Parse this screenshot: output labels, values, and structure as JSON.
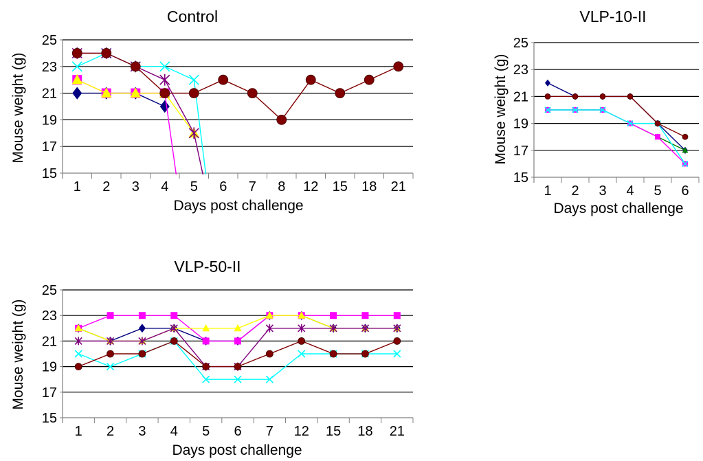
{
  "chart_data": [
    {
      "type": "line",
      "title": "Control",
      "xlabel": "Days post challenge",
      "ylabel": "Mouse weight (g)",
      "categories": [
        "1",
        "2",
        "3",
        "4",
        "5",
        "6",
        "7",
        "8",
        "12",
        "15",
        "18",
        "21"
      ],
      "ylim": [
        15,
        25
      ],
      "yticks": [
        15,
        17,
        19,
        21,
        23,
        25
      ],
      "grid": true,
      "series": [
        {
          "color": "#000080",
          "marker": "diamond",
          "values": [
            21,
            21,
            21,
            20,
            null,
            null,
            null,
            null,
            null,
            null,
            null,
            null
          ],
          "drop_after_index": null
        },
        {
          "color": "#ff00ff",
          "marker": "square",
          "values": [
            22,
            21,
            21,
            21,
            null,
            null,
            null,
            null,
            null,
            null,
            null,
            null
          ],
          "drop_after_index": 3
        },
        {
          "color": "#ffff00",
          "marker": "triangle",
          "values": [
            22,
            21,
            21,
            21,
            18,
            null,
            null,
            null,
            null,
            null,
            null,
            null
          ],
          "drop_after_index": null
        },
        {
          "color": "#00ffff",
          "marker": "x",
          "values": [
            23,
            24,
            23,
            23,
            22,
            null,
            null,
            null,
            null,
            null,
            null,
            null
          ],
          "drop_after_index": 4
        },
        {
          "color": "#800080",
          "marker": "star",
          "values": [
            24,
            24,
            23,
            22,
            18,
            null,
            null,
            null,
            null,
            null,
            null,
            null
          ],
          "drop_after_index": 4
        },
        {
          "color": "#800000",
          "marker": "circle",
          "values": [
            24,
            24,
            23,
            21,
            21,
            22,
            21,
            19,
            22,
            21,
            22,
            23
          ],
          "drop_after_index": null
        }
      ]
    },
    {
      "type": "line",
      "title": "VLP-10-II",
      "xlabel": "Days post challenge",
      "ylabel": "Mouse weight (g)",
      "categories": [
        "1",
        "2",
        "3",
        "4",
        "5",
        "6"
      ],
      "ylim": [
        15,
        25
      ],
      "yticks": [
        15,
        17,
        19,
        21,
        23,
        25
      ],
      "grid": true,
      "series": [
        {
          "color": "#000080",
          "marker": "diamond",
          "values": [
            22,
            21,
            21,
            21,
            19,
            17
          ]
        },
        {
          "color": "#008000",
          "marker": "triangle",
          "values": [
            20,
            20,
            20,
            19,
            18,
            17
          ]
        },
        {
          "color": "#ff00ff",
          "marker": "square",
          "values": [
            20,
            20,
            20,
            19,
            18,
            16
          ]
        },
        {
          "color": "#00ffff",
          "marker": "x",
          "values": [
            20,
            20,
            20,
            19,
            19,
            16
          ]
        },
        {
          "color": "#800000",
          "marker": "circle",
          "values": [
            21,
            21,
            21,
            21,
            19,
            18
          ]
        }
      ]
    },
    {
      "type": "line",
      "title": "VLP-50-II",
      "xlabel": "Days post challenge",
      "ylabel": "Mouse weight (g)",
      "categories": [
        "1",
        "2",
        "3",
        "4",
        "5",
        "6",
        "7",
        "12",
        "15",
        "18",
        "21"
      ],
      "ylim": [
        15,
        25
      ],
      "yticks": [
        15,
        17,
        19,
        21,
        23,
        25
      ],
      "grid": true,
      "series": [
        {
          "color": "#000080",
          "marker": "diamond",
          "values": [
            22,
            21,
            22,
            22,
            21,
            21,
            23,
            23,
            22,
            22,
            22
          ]
        },
        {
          "color": "#ff00ff",
          "marker": "square",
          "values": [
            22,
            23,
            23,
            23,
            21,
            21,
            23,
            23,
            23,
            23,
            23
          ]
        },
        {
          "color": "#ffff00",
          "marker": "triangle",
          "values": [
            22,
            21,
            21,
            22,
            22,
            22,
            23,
            23,
            22,
            22,
            22
          ]
        },
        {
          "color": "#00ffff",
          "marker": "x",
          "values": [
            20,
            19,
            20,
            21,
            18,
            18,
            18,
            20,
            20,
            20,
            20
          ]
        },
        {
          "color": "#800080",
          "marker": "star",
          "values": [
            21,
            21,
            21,
            22,
            19,
            19,
            22,
            22,
            22,
            22,
            22
          ]
        },
        {
          "color": "#800000",
          "marker": "circle",
          "values": [
            19,
            20,
            20,
            21,
            19,
            19,
            20,
            21,
            20,
            20,
            21
          ]
        }
      ]
    }
  ]
}
